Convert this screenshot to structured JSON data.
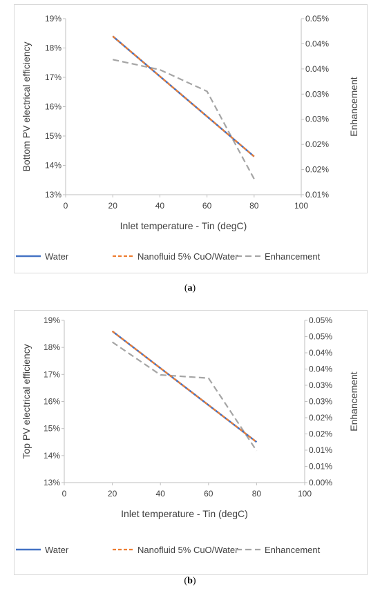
{
  "chart_data": [
    {
      "type": "line",
      "panel_label": "a",
      "xlabel": "Inlet temperature - Tin (degC)",
      "ylabel": "Bottom  PV electrical efficiency",
      "y2label": "Enhancement",
      "xlim": [
        0,
        100
      ],
      "xticks": [
        "0",
        "20",
        "40",
        "60",
        "80",
        "100"
      ],
      "ylim": [
        13,
        19
      ],
      "yticks": [
        "13%",
        "14%",
        "15%",
        "16%",
        "17%",
        "18%",
        "19%"
      ],
      "y2lim": [
        0.01,
        0.05
      ],
      "y2ticks": [
        "0.01%",
        "0.02%",
        "0.02%",
        "0.03%",
        "0.03%",
        "0.04%",
        "0.04%",
        "0.05%"
      ],
      "legend_position": "bottom",
      "series": [
        {
          "name": "Water",
          "axis": "left",
          "style": "solid",
          "color": "#4472C4",
          "x": [
            20,
            80
          ],
          "y": [
            18.4,
            14.3
          ]
        },
        {
          "name": "Nanofluid 5% CuO/Water",
          "axis": "right_primary",
          "style": "dashed",
          "color": "#ED7D31",
          "x": [
            20,
            80
          ],
          "y": [
            18.4,
            14.3
          ]
        },
        {
          "name": "Enhancement",
          "axis": "right",
          "style": "dashed",
          "color": "#A5A5A5",
          "x": [
            20,
            40,
            60,
            70,
            80
          ],
          "y": [
            0.0407,
            0.0384,
            0.0335,
            0.0235,
            0.0136
          ]
        }
      ]
    },
    {
      "type": "line",
      "panel_label": "b",
      "xlabel": "Inlet temperature - Tin (degC)",
      "ylabel": "Top PV electrical efficiency",
      "y2label": "Enhancement",
      "xlim": [
        0,
        100
      ],
      "xticks": [
        "0",
        "20",
        "40",
        "60",
        "80",
        "100"
      ],
      "ylim": [
        13,
        19
      ],
      "yticks": [
        "13%",
        "14%",
        "15%",
        "16%",
        "17%",
        "18%",
        "19%"
      ],
      "y2lim": [
        0.0,
        0.05
      ],
      "y2ticks": [
        "0.00%",
        "0.01%",
        "0.01%",
        "0.02%",
        "0.02%",
        "0.03%",
        "0.03%",
        "0.04%",
        "0.04%",
        "0.05%",
        "0.05%"
      ],
      "legend_position": "bottom",
      "series": [
        {
          "name": "Water",
          "axis": "left",
          "style": "solid",
          "color": "#4472C4",
          "x": [
            20,
            80
          ],
          "y": [
            18.6,
            14.5
          ]
        },
        {
          "name": "Nanofluid 5% CuO/Water",
          "axis": "left",
          "style": "dashed",
          "color": "#ED7D31",
          "x": [
            20,
            80
          ],
          "y": [
            18.6,
            14.5
          ]
        },
        {
          "name": "Enhancement",
          "axis": "right",
          "style": "dashed",
          "color": "#A5A5A5",
          "x": [
            20,
            40,
            60,
            80
          ],
          "y": [
            0.0433,
            0.0332,
            0.0322,
            0.0098
          ]
        }
      ]
    }
  ]
}
